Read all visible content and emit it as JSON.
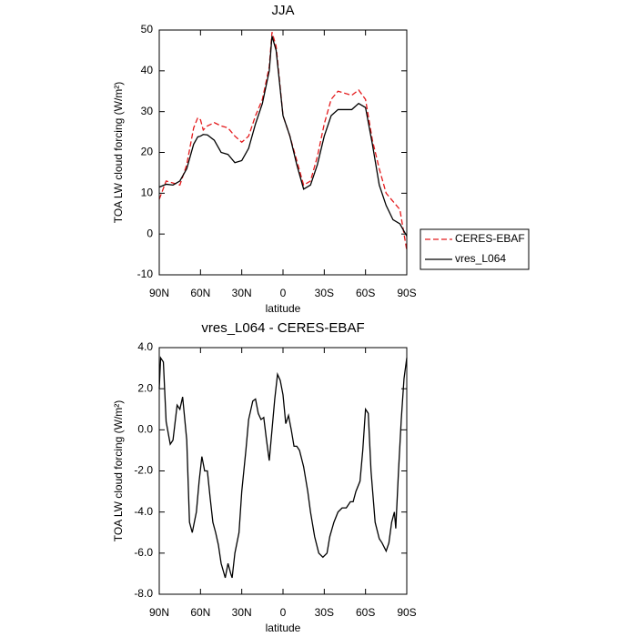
{
  "chart_data": [
    {
      "type": "line",
      "title": "JJA",
      "x_label": "latitude",
      "y_label": "TOA LW cloud forcing (W/m²)",
      "x": [
        90,
        85,
        80,
        75,
        70,
        65,
        62,
        60,
        58,
        55,
        50,
        45,
        40,
        35,
        30,
        25,
        20,
        15,
        10,
        8,
        5,
        0,
        -5,
        -10,
        -15,
        -20,
        -25,
        -30,
        -35,
        -40,
        -45,
        -50,
        -55,
        -60,
        -65,
        -70,
        -75,
        -80,
        -85,
        -90
      ],
      "series": [
        {
          "name": "CERES-EBAF",
          "color": "#e41a1c",
          "dash": true,
          "values": [
            8.5,
            13,
            12.5,
            12,
            17,
            26,
            28.5,
            28,
            25.5,
            26.5,
            27.3,
            26.5,
            26,
            24,
            22.5,
            24,
            29,
            33,
            41,
            49.5,
            46,
            29,
            24,
            18,
            12,
            13,
            19,
            27,
            33,
            35,
            34.5,
            34,
            35.3,
            33,
            23,
            16,
            10,
            8,
            6,
            -4
          ]
        },
        {
          "name": "vres_L064",
          "color": "#000000",
          "dash": false,
          "values": [
            11.5,
            12.2,
            12,
            13,
            16,
            22,
            23.8,
            24,
            24.4,
            24.3,
            23,
            20,
            19.5,
            17.5,
            18,
            21,
            27,
            32,
            40,
            48.5,
            45,
            29,
            24,
            17,
            11,
            12,
            17,
            24,
            29,
            30.5,
            30.5,
            30.5,
            32,
            31,
            22,
            12,
            7,
            3.5,
            2.5,
            -0.5
          ]
        }
      ],
      "xlim": [
        90,
        -90
      ],
      "xticks": [
        {
          "value": 90,
          "label": "90N"
        },
        {
          "value": 60,
          "label": "60N"
        },
        {
          "value": 30,
          "label": "30N"
        },
        0,
        {
          "value": -30,
          "label": "30S"
        },
        {
          "value": -60,
          "label": "60S"
        },
        {
          "value": -90,
          "label": "90S"
        }
      ],
      "ylim": [
        -10,
        50
      ],
      "yticks": [
        -10,
        0,
        10,
        20,
        30,
        40,
        50
      ],
      "legend": "right"
    },
    {
      "type": "line",
      "title": "vres_L064 - CERES-EBAF",
      "x_label": "latitude",
      "y_label": "TOA LW cloud forcing (W/m²)",
      "x": [
        90,
        89,
        87,
        85,
        82,
        80,
        77,
        75,
        73,
        70,
        68,
        66,
        63,
        61,
        59,
        57,
        55,
        53,
        51,
        49,
        47,
        45,
        42,
        40,
        38,
        37,
        35,
        32,
        30,
        27,
        25,
        22,
        20,
        18,
        16,
        14,
        12,
        10,
        8,
        6,
        4,
        2,
        0,
        -2,
        -4,
        -6,
        -8,
        -10,
        -12,
        -15,
        -18,
        -20,
        -23,
        -26,
        -29,
        -32,
        -34,
        -37,
        -40,
        -43,
        -46,
        -49,
        -51,
        -53,
        -56,
        -58,
        -60,
        -62,
        -64,
        -67,
        -70,
        -72,
        -75,
        -77,
        -79,
        -81,
        -82,
        -84,
        -86,
        -88,
        -90
      ],
      "series": [
        {
          "name": "vres_L064 - CERES-EBAF",
          "color": "#000000",
          "dash": false,
          "values": [
            2,
            3.5,
            3.3,
            0.4,
            -0.7,
            -0.5,
            1.2,
            1.0,
            1.6,
            -0.5,
            -4.5,
            -5.0,
            -4,
            -2.5,
            -1.3,
            -2,
            -2.0,
            -3.3,
            -4.5,
            -5.0,
            -5.6,
            -6.5,
            -7.2,
            -6.5,
            -7.0,
            -7.2,
            -6,
            -5.0,
            -3,
            -1.0,
            0.5,
            1.4,
            1.5,
            0.8,
            0.5,
            0.6,
            -0.5,
            -1.5,
            0.0,
            1.5,
            2.7,
            2.4,
            1.7,
            0.3,
            0.7,
            0,
            -0.8,
            -0.8,
            -1.0,
            -1.8,
            -3,
            -4,
            -5.2,
            -6.0,
            -6.2,
            -6.0,
            -5.2,
            -4.5,
            -4.0,
            -3.8,
            -3.8,
            -3.5,
            -3.5,
            -3.0,
            -2.5,
            -1.0,
            1.0,
            0.8,
            -2,
            -4.5,
            -5.3,
            -5.5,
            -5.9,
            -5.5,
            -4.5,
            -4.0,
            -4.8,
            -2,
            0.5,
            2.5,
            3.5
          ]
        }
      ],
      "xlim": [
        90,
        -90
      ],
      "xticks": [
        {
          "value": 90,
          "label": "90N"
        },
        {
          "value": 60,
          "label": "60N"
        },
        {
          "value": 30,
          "label": "30N"
        },
        0,
        {
          "value": -30,
          "label": "30S"
        },
        {
          "value": -60,
          "label": "60S"
        },
        {
          "value": -90,
          "label": "90S"
        }
      ],
      "ylim": [
        -8,
        4
      ],
      "yticks": [
        {
          "value": -8,
          "label": "-8.0"
        },
        {
          "value": -6,
          "label": "-6.0"
        },
        {
          "value": -4,
          "label": "-4.0"
        },
        {
          "value": -2,
          "label": "-2.0"
        },
        {
          "value": 0,
          "label": "0.0"
        },
        {
          "value": 2,
          "label": "2.0"
        },
        {
          "value": 4,
          "label": "4.0"
        }
      ]
    }
  ]
}
